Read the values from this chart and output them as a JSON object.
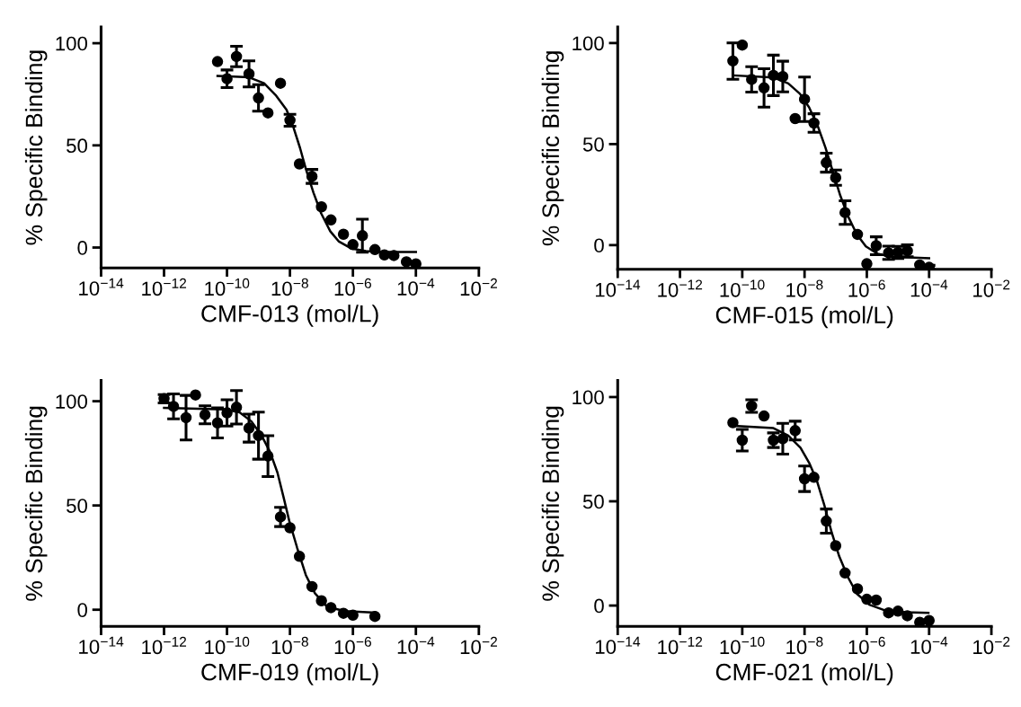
{
  "chart_data": [
    {
      "type": "scatter",
      "xlabel": "CMF-013 (mol/L)",
      "ylabel": "% Specific Binding",
      "log": "x",
      "grid": false,
      "xlim": [
        1e-14,
        0.01
      ],
      "ylim": [
        -10,
        108
      ],
      "xticks": [
        {
          "value": 1e-14,
          "label": "10$^{−14}$"
        },
        {
          "value": 1e-12,
          "label": "10$^{−12}$"
        },
        {
          "value": 1e-10,
          "label": "10$^{−10}$"
        },
        {
          "value": 1e-08,
          "label": "10$^{−8}$"
        },
        {
          "value": 1e-06,
          "label": "10$^{−6}$"
        },
        {
          "value": 0.0001,
          "label": "10$^{−4}$"
        },
        {
          "value": 0.01,
          "label": "10$^{−2}$"
        }
      ],
      "yticks": [
        0,
        50,
        100
      ],
      "series": [
        {
          "type": "scatter",
          "marker": "circle",
          "color": "#000000",
          "x": [
            5e-11,
            1e-10,
            2e-10,
            5e-10,
            1e-09,
            2e-09,
            5e-09,
            1e-08,
            2e-08,
            5e-08,
            1e-07,
            2e-07,
            5e-07,
            1e-06,
            2e-06,
            5e-06,
            1e-05,
            2e-05,
            5e-05,
            0.0001
          ],
          "values": [
            91,
            82.6,
            93.5,
            85,
            73.2,
            65.9,
            80.4,
            62.3,
            40.9,
            34.8,
            19.9,
            13.5,
            6.5,
            1.4,
            5.8,
            -1,
            -3.6,
            -3.9,
            -7,
            -8
          ],
          "errors": [
            null,
            4.3,
            5,
            6.4,
            6.5,
            null,
            null,
            2.9,
            null,
            3.4,
            null,
            null,
            null,
            null,
            8.1,
            null,
            null,
            null,
            null,
            null
          ]
        },
        {
          "type": "line",
          "color": "#000000",
          "line_style": "solid",
          "x": [
            5e-11,
            5e-10,
            1.5e-09,
            3.5e-09,
            7.8e-09,
            1.3e-08,
            2.1e-08,
            3.2e-08,
            5.6e-08,
            9.8e-08,
            1.9e-07,
            3.6e-07,
            8.7e-07,
            2.6e-06,
            1.5e-05,
            0.0001
          ],
          "values": [
            84,
            83.3,
            80.4,
            74.6,
            67.4,
            58.7,
            48.6,
            38.4,
            26.8,
            16.7,
            8,
            2.9,
            -0.4,
            -1.7,
            -2.2,
            -2.2
          ]
        }
      ]
    },
    {
      "type": "scatter",
      "xlabel": "CMF-015 (mol/L)",
      "ylabel": "% Specific Binding",
      "log": "x",
      "grid": false,
      "xlim": [
        1e-14,
        0.01
      ],
      "ylim": [
        -12,
        108
      ],
      "xticks": [
        {
          "value": 1e-14,
          "label": "10$^{−14}$"
        },
        {
          "value": 1e-12,
          "label": "10$^{−12}$"
        },
        {
          "value": 1e-10,
          "label": "10$^{−10}$"
        },
        {
          "value": 1e-08,
          "label": "10$^{−8}$"
        },
        {
          "value": 1e-06,
          "label": "10$^{−6}$"
        },
        {
          "value": 0.0001,
          "label": "10$^{−4}$"
        },
        {
          "value": 0.01,
          "label": "10$^{−2}$"
        }
      ],
      "yticks": [
        0,
        50,
        100
      ],
      "series": [
        {
          "type": "scatter",
          "marker": "circle",
          "color": "#000000",
          "x": [
            5e-11,
            1e-10,
            2e-10,
            5e-10,
            1e-09,
            2e-09,
            5e-09,
            1e-08,
            2e-08,
            5e-08,
            1e-07,
            2e-07,
            5e-07,
            1e-06,
            2e-06,
            5e-06,
            1e-05,
            2e-05,
            5e-05,
            0.0001
          ],
          "values": [
            91.1,
            99,
            82,
            77.8,
            84,
            83.4,
            62.6,
            72.2,
            60.4,
            40.8,
            33.4,
            16.1,
            5.3,
            -9.2,
            -0.3,
            -3.8,
            -3.6,
            -2.8,
            -9.8,
            -11
          ],
          "errors": [
            9,
            null,
            6.3,
            9.5,
            10,
            7.6,
            null,
            11,
            4.6,
            4.7,
            3.8,
            5.8,
            null,
            null,
            4.4,
            3.3,
            3,
            3,
            null,
            1
          ]
        },
        {
          "type": "line",
          "color": "#000000",
          "line_style": "solid",
          "x": [
            5e-11,
            9.8e-10,
            3e-09,
            7.1e-09,
            1.4e-08,
            2.7e-08,
            4.7e-08,
            8.1e-08,
            1.4e-07,
            2.5e-07,
            4.8e-07,
            9.3e-07,
            2.2e-06,
            6.8e-06,
            0.0001
          ],
          "values": [
            84,
            83,
            80,
            74.9,
            68.2,
            58.6,
            48.2,
            36.4,
            24.6,
            14.2,
            5.3,
            -0.6,
            -4.3,
            -5.8,
            -6.5
          ]
        }
      ]
    },
    {
      "type": "scatter",
      "xlabel": "CMF-019 (mol/L)",
      "ylabel": "% Specific Binding",
      "log": "x",
      "grid": false,
      "xlim": [
        1e-14,
        0.01
      ],
      "ylim": [
        -8,
        110
      ],
      "xticks": [
        {
          "value": 1e-14,
          "label": "10$^{−14}$"
        },
        {
          "value": 1e-12,
          "label": "10$^{−12}$"
        },
        {
          "value": 1e-10,
          "label": "10$^{−10}$"
        },
        {
          "value": 1e-08,
          "label": "10$^{−8}$"
        },
        {
          "value": 1e-06,
          "label": "10$^{−6}$"
        },
        {
          "value": 0.0001,
          "label": "10$^{−4}$"
        },
        {
          "value": 0.01,
          "label": "10$^{−2}$"
        }
      ],
      "yticks": [
        0,
        50,
        100
      ],
      "series": [
        {
          "type": "scatter",
          "marker": "circle",
          "color": "#000000",
          "x": [
            1e-12,
            2e-12,
            5e-12,
            1e-11,
            2e-11,
            5e-11,
            1e-10,
            2e-10,
            5e-10,
            1e-09,
            2e-09,
            5e-09,
            1e-08,
            2e-08,
            5e-08,
            1e-07,
            2e-07,
            5e-07,
            1e-06,
            5e-06
          ],
          "values": [
            101.2,
            97.5,
            92.1,
            103,
            93.5,
            89.6,
            94.4,
            97.1,
            87.1,
            83.5,
            73.7,
            44.5,
            39.3,
            25.6,
            11.1,
            4.3,
            1,
            -1.7,
            -2.6,
            -3.2
          ],
          "errors": [
            2,
            6,
            10.7,
            null,
            4.3,
            7.2,
            6.3,
            8,
            6.7,
            11.3,
            9.8,
            4.6,
            null,
            null,
            null,
            null,
            null,
            null,
            null,
            null
          ]
        },
        {
          "type": "line",
          "color": "#000000",
          "line_style": "solid",
          "x": [
            1e-12,
            8.3e-11,
            2.5e-10,
            6e-10,
            1.3e-09,
            2.3e-09,
            4e-09,
            6.2e-09,
            9.5e-09,
            1.7e-08,
            3.2e-08,
            6.2e-08,
            1.5e-07,
            5.6e-07,
            5.1e-06
          ],
          "values": [
            96.8,
            96.1,
            94.7,
            90.3,
            83.1,
            75.9,
            65.8,
            54.2,
            42.6,
            29.6,
            16.6,
            7.9,
            1.4,
            -0.7,
            -1.4
          ]
        }
      ]
    },
    {
      "type": "scatter",
      "xlabel": "CMF-021 (mol/L)",
      "ylabel": "% Specific Binding",
      "log": "x",
      "grid": false,
      "xlim": [
        1e-14,
        0.01
      ],
      "ylim": [
        -10,
        108
      ],
      "xticks": [
        {
          "value": 1e-14,
          "label": "10$^{−14}$"
        },
        {
          "value": 1e-12,
          "label": "10$^{−12}$"
        },
        {
          "value": 1e-10,
          "label": "10$^{−10}$"
        },
        {
          "value": 1e-08,
          "label": "10$^{−8}$"
        },
        {
          "value": 1e-06,
          "label": "10$^{−6}$"
        },
        {
          "value": 0.0001,
          "label": "10$^{−4}$"
        },
        {
          "value": 0.01,
          "label": "10$^{−2}$"
        }
      ],
      "yticks": [
        0,
        50,
        100
      ],
      "series": [
        {
          "type": "scatter",
          "marker": "circle",
          "color": "#000000",
          "x": [
            5e-11,
            1e-10,
            2e-10,
            5e-10,
            1e-09,
            2e-09,
            5e-09,
            1e-08,
            2e-08,
            5e-08,
            1e-07,
            2e-07,
            5e-07,
            1e-06,
            2e-06,
            5e-06,
            1e-05,
            2e-05,
            5e-05,
            0.0001
          ],
          "values": [
            87.7,
            79.3,
            95.7,
            90.9,
            79.3,
            80,
            83.9,
            60.8,
            61.5,
            40.5,
            28.7,
            15.6,
            8,
            3,
            2.6,
            -3.5,
            -2.7,
            -4.9,
            -8,
            -7.2
          ],
          "errors": [
            null,
            5.2,
            3,
            null,
            3.5,
            7.4,
            4.5,
            6.1,
            null,
            5.8,
            null,
            null,
            null,
            null,
            null,
            null,
            null,
            null,
            null,
            null
          ]
        },
        {
          "type": "line",
          "color": "#000000",
          "line_style": "solid",
          "x": [
            7.1e-11,
            1e-09,
            3e-09,
            7.4e-09,
            1.4e-08,
            2.5e-08,
            4.3e-08,
            7.4e-08,
            1.3e-07,
            2.5e-07,
            4.9e-07,
            1.2e-06,
            3.6e-06,
            1.7e-05,
            9.5e-05
          ],
          "values": [
            86.1,
            85.1,
            81.5,
            75.7,
            68.5,
            59.8,
            48.2,
            35.2,
            23.6,
            13.5,
            5.5,
            0.4,
            -2.2,
            -3.2,
            -3.5
          ]
        }
      ]
    }
  ]
}
